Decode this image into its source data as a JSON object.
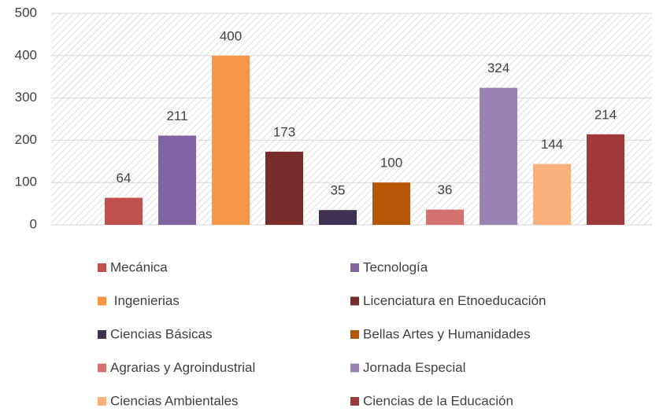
{
  "chart_data": {
    "type": "bar",
    "series": [
      {
        "name": "Mecánica",
        "color": "#c0504d",
        "values": [
          64
        ]
      },
      {
        "name": "Tecnología",
        "color": "#8064a2",
        "values": [
          211
        ]
      },
      {
        "name": " Ingenierias",
        "color": "#f79646",
        "values": [
          400
        ]
      },
      {
        "name": "Licenciatura en Etnoeducación",
        "color": "#772c2a",
        "values": [
          173
        ]
      },
      {
        "name": "Ciencias Básicas",
        "color": "#3f3151",
        "values": [
          35
        ]
      },
      {
        "name": "Bellas Artes y Humanidades",
        "color": "#b65708",
        "values": [
          100
        ]
      },
      {
        "name": "Agrarias y Agroindustrial",
        "color": "#d47270",
        "values": [
          36
        ]
      },
      {
        "name": "Jornada Especial",
        "color": "#9983b5",
        "values": [
          324
        ]
      },
      {
        "name": "Ciencias Ambientales",
        "color": "#fab07a",
        "values": [
          144
        ]
      },
      {
        "name": "Ciencias de la Educación",
        "color": "#a0393a",
        "values": [
          214
        ]
      }
    ],
    "ylim": [
      0,
      500
    ],
    "yticks": [
      0,
      100,
      200,
      300,
      400,
      500
    ],
    "grid": true,
    "legend": "bottom"
  }
}
